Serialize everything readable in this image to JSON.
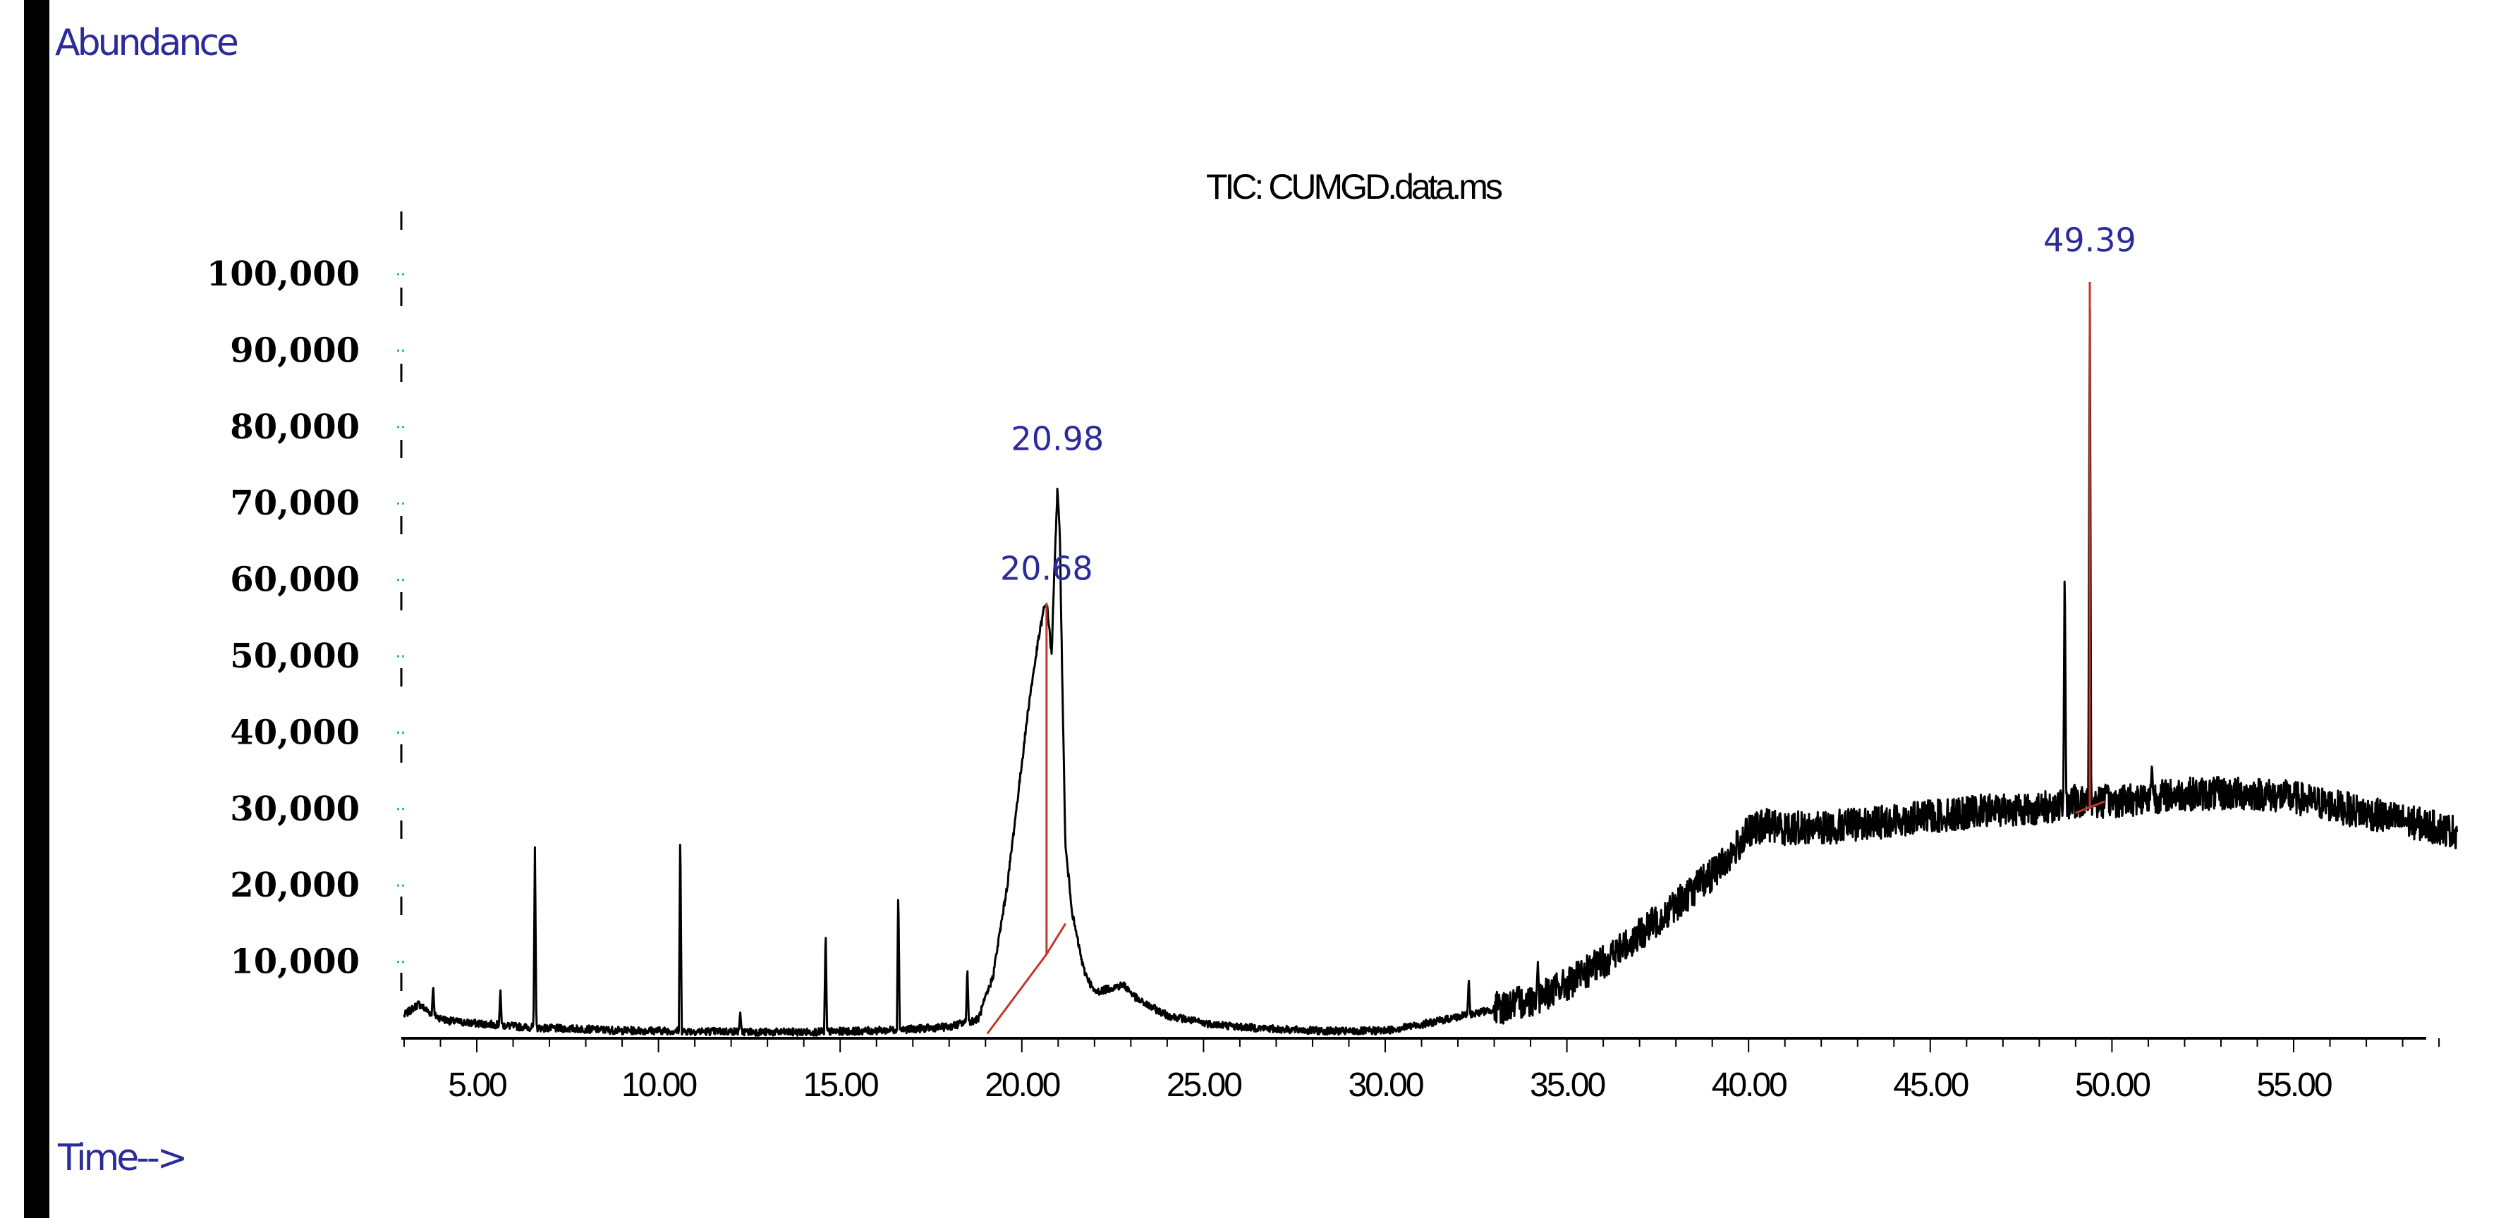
{
  "chart_data": {
    "type": "line",
    "title": "TIC: CUMGD.data.ms",
    "ylabel": "Abundance",
    "xlabel": "Time-->",
    "xlim": [
      3.0,
      59.5
    ],
    "ylim": [
      0,
      108000
    ],
    "x_ticks": [
      5,
      10,
      15,
      20,
      25,
      30,
      35,
      40,
      45,
      50,
      55
    ],
    "x_tick_labels": [
      "5.00",
      "10.00",
      "15.00",
      "20.00",
      "25.00",
      "30.00",
      "35.00",
      "40.00",
      "45.00",
      "50.00",
      "55.00"
    ],
    "y_ticks": [
      10000,
      20000,
      30000,
      40000,
      50000,
      60000,
      70000,
      80000,
      90000,
      100000
    ],
    "y_tick_labels": [
      "10,000",
      "20,000",
      "30,000",
      "40,000",
      "50,000",
      "60,000",
      "70,000",
      "80,000",
      "90,000",
      "100,000"
    ],
    "series": [
      {
        "x": [
          3.0,
          3.4,
          3.8,
          4.2,
          4.8,
          5.5,
          6.2,
          7.0,
          8.0,
          9.0,
          10.0,
          11.0,
          12.0,
          13.0,
          14.0,
          15.0,
          16.0,
          17.0,
          18.0,
          18.8,
          19.2,
          19.6,
          19.9,
          20.2,
          20.45,
          20.6,
          20.68,
          20.75,
          20.82,
          20.9,
          20.98,
          21.05,
          21.12,
          21.2,
          21.4,
          21.7,
          22.0,
          22.4,
          22.8,
          23.2,
          24.0,
          25.0,
          26.0,
          27.0,
          28.0,
          29.0,
          30.0,
          31.0,
          32.0,
          33.0,
          34.0,
          35.0,
          36.0,
          37.0,
          38.0,
          39.0,
          39.6,
          40.0,
          40.5,
          41.0,
          42.0,
          43.0,
          44.0,
          45.0,
          46.0,
          47.0,
          48.0,
          48.5,
          48.9,
          49.1,
          49.25,
          49.39,
          49.5,
          49.7,
          50.0,
          51.0,
          52.0,
          53.0,
          54.0,
          55.0,
          56.0,
          57.0,
          58.0,
          59.0,
          59.5
        ],
        "y": [
          3000,
          4500,
          3000,
          2300,
          2000,
          1800,
          1500,
          1300,
          1200,
          1000,
          1000,
          900,
          900,
          800,
          800,
          900,
          1000,
          1200,
          1500,
          2500,
          8000,
          20000,
          32000,
          44000,
          52000,
          56000,
          57000,
          54000,
          50000,
          62000,
          72000,
          65000,
          45000,
          25000,
          16000,
          9000,
          6000,
          6500,
          7000,
          5000,
          3000,
          2000,
          1500,
          1200,
          1000,
          900,
          1000,
          1800,
          2800,
          3800,
          5000,
          7000,
          10000,
          13500,
          17500,
          21500,
          24500,
          27000,
          28000,
          27500,
          27500,
          28000,
          28500,
          29000,
          29500,
          30000,
          30000,
          30500,
          31000,
          31000,
          31000,
          31000,
          31000,
          31000,
          31000,
          31500,
          32000,
          32000,
          32000,
          31500,
          30500,
          29500,
          28500,
          27500,
          27000
        ]
      }
    ],
    "spikes": [
      {
        "x": 3.8,
        "y": 7000
      },
      {
        "x": 5.65,
        "y": 6500
      },
      {
        "x": 6.6,
        "y": 25000
      },
      {
        "x": 10.6,
        "y": 28000
      },
      {
        "x": 12.25,
        "y": 3500
      },
      {
        "x": 14.6,
        "y": 14500
      },
      {
        "x": 16.6,
        "y": 20000
      },
      {
        "x": 18.5,
        "y": 9500
      },
      {
        "x": 32.3,
        "y": 8000
      },
      {
        "x": 34.2,
        "y": 10000
      },
      {
        "x": 48.7,
        "y": 63000
      },
      {
        "x": 49.39,
        "y": 99000
      },
      {
        "x": 51.1,
        "y": 36000
      }
    ],
    "peak_labels": [
      {
        "text": "20.98",
        "x": 20.98,
        "y": 77000
      },
      {
        "text": "20.68",
        "x": 20.68,
        "y": 60000
      },
      {
        "text": "49.39",
        "x": 49.39,
        "y": 103000
      }
    ],
    "integration_baselines": [
      {
        "x1": 19.05,
        "y1": 600,
        "x2": 20.68,
        "y2": 11000
      },
      {
        "x1": 20.68,
        "y1": 11000,
        "x2": 21.2,
        "y2": 15000
      },
      {
        "x1": 49.0,
        "y1": 29500,
        "x2": 49.8,
        "y2": 31000
      }
    ],
    "drop_lines": [
      {
        "x": 20.68,
        "y_top": 57000,
        "y_bottom": 11000
      },
      {
        "x": 49.39,
        "y_top": 99000,
        "y_bottom": 30000
      }
    ],
    "colors": {
      "trace": "#000000",
      "label": "#2b2b9a",
      "baseline": "#c0392b",
      "tick_blue": "#29a9d6",
      "left_bar": "#000000"
    }
  }
}
